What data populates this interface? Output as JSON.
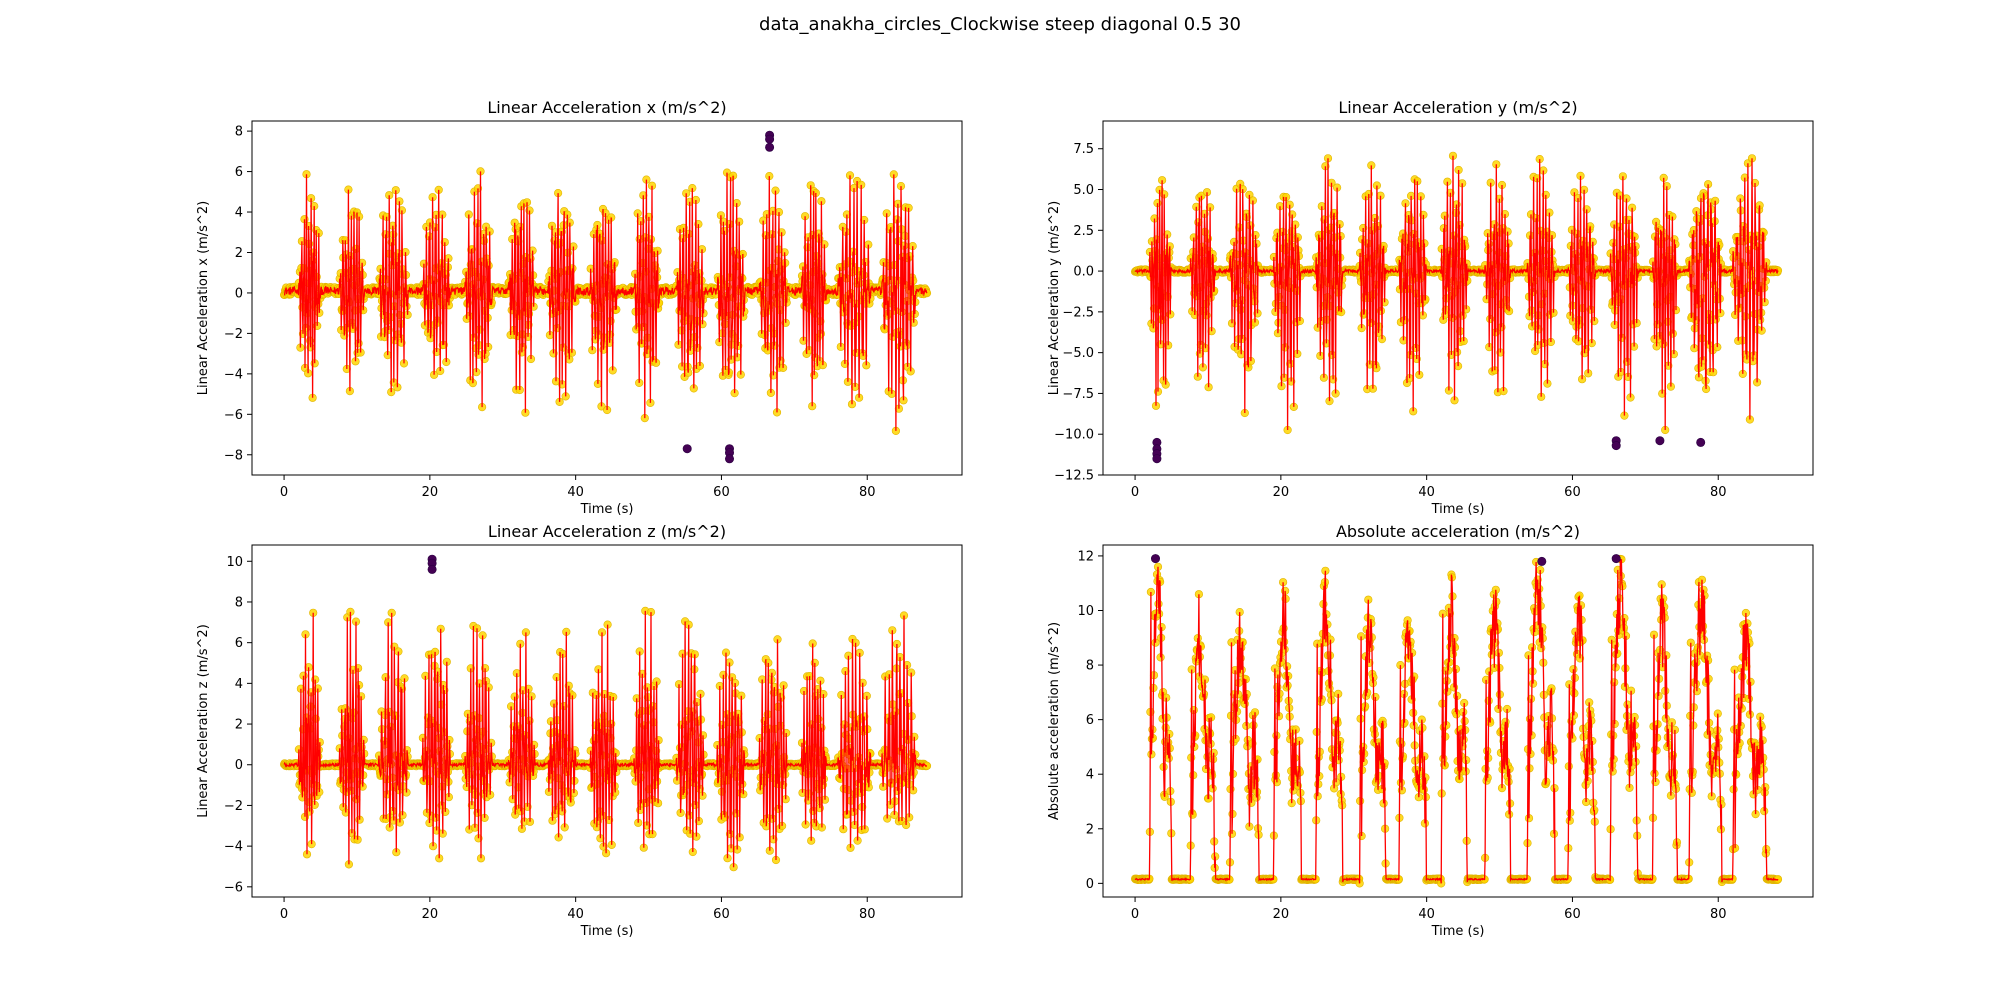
{
  "figure": {
    "title": "data_anakha_circles_Clockwise steep diagonal 0.5 30",
    "colors": {
      "line": "#ff0000",
      "marker": "#ffd500",
      "marker_edge": "#e0b400",
      "outlier": "#440154",
      "background": "#ffffff"
    }
  },
  "chart_data": [
    {
      "id": "ax",
      "type": "line",
      "title": "Linear Acceleration x (m/s^2)",
      "xlabel": "Time (s)",
      "ylabel": "Linear Acceleration x (m/s^2)",
      "xlim": [
        -4.4,
        93.0
      ],
      "ylim": [
        -9.0,
        8.5
      ],
      "xticks": [
        0,
        20,
        40,
        60,
        80
      ],
      "yticks": [
        -8,
        -6,
        -4,
        -2,
        0,
        2,
        4,
        6,
        8
      ],
      "grid": false,
      "rest": 0.1,
      "rest_jitter": 0.4,
      "window_jitter": 1.0,
      "cycles": [
        {
          "start": 2.0,
          "end": 5.0,
          "max": 6.3,
          "min": -5.8
        },
        {
          "start": 7.6,
          "end": 11.0,
          "max": 5.8,
          "min": -5.3
        },
        {
          "start": 13.0,
          "end": 17.0,
          "max": 6.1,
          "min": -5.6
        },
        {
          "start": 19.0,
          "end": 22.8,
          "max": 5.5,
          "min": -5.2
        },
        {
          "start": 24.8,
          "end": 28.5,
          "max": 6.3,
          "min": -6.4
        },
        {
          "start": 30.8,
          "end": 34.4,
          "max": 5.6,
          "min": -6.2
        },
        {
          "start": 36.2,
          "end": 40.0,
          "max": 6.6,
          "min": -6.1
        },
        {
          "start": 42.0,
          "end": 45.6,
          "max": 5.7,
          "min": -6.5
        },
        {
          "start": 48.0,
          "end": 51.5,
          "max": 6.4,
          "min": -6.8
        },
        {
          "start": 53.8,
          "end": 57.6,
          "max": 5.5,
          "min": -7.3
        },
        {
          "start": 59.4,
          "end": 63.2,
          "max": 6.5,
          "min": -7.2
        },
        {
          "start": 65.2,
          "end": 69.0,
          "max": 5.8,
          "min": -6.6
        },
        {
          "start": 71.0,
          "end": 74.4,
          "max": 6.3,
          "min": -6.0
        },
        {
          "start": 76.0,
          "end": 80.5,
          "max": 6.1,
          "min": -6.2
        },
        {
          "start": 82.0,
          "end": 86.6,
          "max": 6.3,
          "min": -7.3
        }
      ],
      "outliers": [
        [
          66.6,
          7.8
        ],
        [
          66.6,
          7.6
        ],
        [
          66.6,
          7.2
        ],
        [
          55.3,
          -7.7
        ],
        [
          61.1,
          -7.7
        ],
        [
          61.1,
          -7.9
        ],
        [
          61.1,
          -8.2
        ]
      ]
    },
    {
      "id": "ay",
      "type": "line",
      "title": "Linear Acceleration y (m/s^2)",
      "xlabel": "Time (s)",
      "ylabel": "Linear Acceleration y (m/s^2)",
      "xlim": [
        -4.4,
        93.0
      ],
      "ylim": [
        -12.5,
        9.2
      ],
      "xticks": [
        0,
        20,
        40,
        60,
        80
      ],
      "yticks": [
        -12.5,
        -10.0,
        -7.5,
        -5.0,
        -2.5,
        0.0,
        2.5,
        5.0,
        7.5
      ],
      "grid": false,
      "rest": 0.0,
      "rest_jitter": 0.2,
      "window_jitter": 1.0,
      "cycles": [
        {
          "start": 2.0,
          "end": 5.0,
          "max": 6.3,
          "min": -10.0
        },
        {
          "start": 7.6,
          "end": 11.0,
          "max": 6.1,
          "min": -8.3
        },
        {
          "start": 13.0,
          "end": 17.0,
          "max": 6.6,
          "min": -8.7
        },
        {
          "start": 19.0,
          "end": 22.8,
          "max": 6.0,
          "min": -10.0
        },
        {
          "start": 24.8,
          "end": 28.5,
          "max": 8.0,
          "min": -9.2
        },
        {
          "start": 30.8,
          "end": 34.4,
          "max": 7.0,
          "min": -8.8
        },
        {
          "start": 36.2,
          "end": 40.0,
          "max": 7.3,
          "min": -8.6
        },
        {
          "start": 42.0,
          "end": 45.6,
          "max": 8.0,
          "min": -8.8
        },
        {
          "start": 48.0,
          "end": 51.5,
          "max": 6.9,
          "min": -9.0
        },
        {
          "start": 53.8,
          "end": 57.6,
          "max": 7.2,
          "min": -8.7
        },
        {
          "start": 59.4,
          "end": 63.2,
          "max": 6.3,
          "min": -8.4
        },
        {
          "start": 65.2,
          "end": 69.0,
          "max": 7.1,
          "min": -9.4
        },
        {
          "start": 71.0,
          "end": 74.4,
          "max": 6.0,
          "min": -10.2
        },
        {
          "start": 76.0,
          "end": 80.5,
          "max": 7.0,
          "min": -10.2
        },
        {
          "start": 82.0,
          "end": 86.6,
          "max": 7.5,
          "min": -9.1
        }
      ],
      "outliers": [
        [
          3.0,
          -10.5
        ],
        [
          3.0,
          -10.9
        ],
        [
          3.0,
          -11.2
        ],
        [
          3.0,
          -11.5
        ],
        [
          66.0,
          -10.4
        ],
        [
          66.0,
          -10.7
        ],
        [
          72.0,
          -10.4
        ],
        [
          77.6,
          -10.5
        ]
      ]
    },
    {
      "id": "az",
      "type": "line",
      "title": "Linear Acceleration z (m/s^2)",
      "xlabel": "Time (s)",
      "ylabel": "Linear Acceleration z (m/s^2)",
      "xlim": [
        -4.4,
        93.0
      ],
      "ylim": [
        -6.5,
        10.8
      ],
      "xticks": [
        0,
        20,
        40,
        60,
        80
      ],
      "yticks": [
        -6,
        -4,
        -2,
        0,
        2,
        4,
        6,
        8,
        10
      ],
      "grid": false,
      "rest": 0.0,
      "rest_jitter": 0.15,
      "window_jitter": 1.0,
      "cycles": [
        {
          "start": 2.0,
          "end": 5.0,
          "max": 8.6,
          "min": -4.4
        },
        {
          "start": 7.6,
          "end": 11.0,
          "max": 8.7,
          "min": -4.9
        },
        {
          "start": 13.0,
          "end": 17.0,
          "max": 8.3,
          "min": -4.3
        },
        {
          "start": 19.0,
          "end": 22.8,
          "max": 9.2,
          "min": -4.6
        },
        {
          "start": 24.8,
          "end": 28.5,
          "max": 7.9,
          "min": -4.6
        },
        {
          "start": 30.8,
          "end": 34.4,
          "max": 7.1,
          "min": -3.8
        },
        {
          "start": 36.2,
          "end": 40.0,
          "max": 7.0,
          "min": -3.9
        },
        {
          "start": 42.0,
          "end": 45.6,
          "max": 7.7,
          "min": -5.4
        },
        {
          "start": 48.0,
          "end": 51.5,
          "max": 8.4,
          "min": -4.6
        },
        {
          "start": 53.8,
          "end": 57.6,
          "max": 9.0,
          "min": -4.3
        },
        {
          "start": 59.4,
          "end": 63.2,
          "max": 7.1,
          "min": -5.5
        },
        {
          "start": 65.2,
          "end": 69.0,
          "max": 8.6,
          "min": -5.0
        },
        {
          "start": 71.0,
          "end": 74.4,
          "max": 7.0,
          "min": -4.4
        },
        {
          "start": 76.0,
          "end": 80.5,
          "max": 7.1,
          "min": -4.6
        },
        {
          "start": 82.0,
          "end": 86.6,
          "max": 8.2,
          "min": -3.5
        }
      ],
      "outliers": [
        [
          20.3,
          10.1
        ],
        [
          20.3,
          9.9
        ],
        [
          20.3,
          9.6
        ]
      ]
    },
    {
      "id": "aabs",
      "type": "line",
      "title": "Absolute acceleration (m/s^2)",
      "xlabel": "Time (s)",
      "ylabel": "Absolute acceleration (m/s^2)",
      "xlim": [
        -4.4,
        93.0
      ],
      "ylim": [
        -0.5,
        12.4
      ],
      "xticks": [
        0,
        20,
        40,
        60,
        80
      ],
      "yticks": [
        0,
        2,
        4,
        6,
        8,
        10,
        12
      ],
      "grid": false,
      "rest": 0.15,
      "rest_jitter": 0.05,
      "window_jitter": 0.4,
      "cycles": [
        {
          "start": 2.0,
          "end": 5.0,
          "max": 11.9,
          "min": 0.1
        },
        {
          "start": 7.6,
          "end": 11.0,
          "max": 9.9,
          "min": 0.1
        },
        {
          "start": 13.0,
          "end": 17.0,
          "max": 9.7,
          "min": 0.1
        },
        {
          "start": 19.0,
          "end": 22.8,
          "max": 10.5,
          "min": 0.1
        },
        {
          "start": 24.8,
          "end": 28.5,
          "max": 10.8,
          "min": 0.1
        },
        {
          "start": 30.8,
          "end": 34.4,
          "max": 9.8,
          "min": 0.1
        },
        {
          "start": 36.2,
          "end": 40.0,
          "max": 9.6,
          "min": 0.1
        },
        {
          "start": 42.0,
          "end": 45.6,
          "max": 10.7,
          "min": 0.1
        },
        {
          "start": 48.0,
          "end": 51.5,
          "max": 10.3,
          "min": 0.1
        },
        {
          "start": 53.8,
          "end": 57.6,
          "max": 11.8,
          "min": 0.1
        },
        {
          "start": 59.4,
          "end": 63.2,
          "max": 10.3,
          "min": 0.1
        },
        {
          "start": 65.2,
          "end": 69.0,
          "max": 11.9,
          "min": 0.1
        },
        {
          "start": 71.0,
          "end": 74.4,
          "max": 10.3,
          "min": 0.1
        },
        {
          "start": 76.0,
          "end": 80.5,
          "max": 10.9,
          "min": 0.1
        },
        {
          "start": 82.0,
          "end": 86.6,
          "max": 9.1,
          "min": 0.1
        }
      ],
      "outliers": [
        [
          2.8,
          11.9
        ],
        [
          55.8,
          11.8
        ],
        [
          66.0,
          11.9
        ]
      ]
    }
  ]
}
